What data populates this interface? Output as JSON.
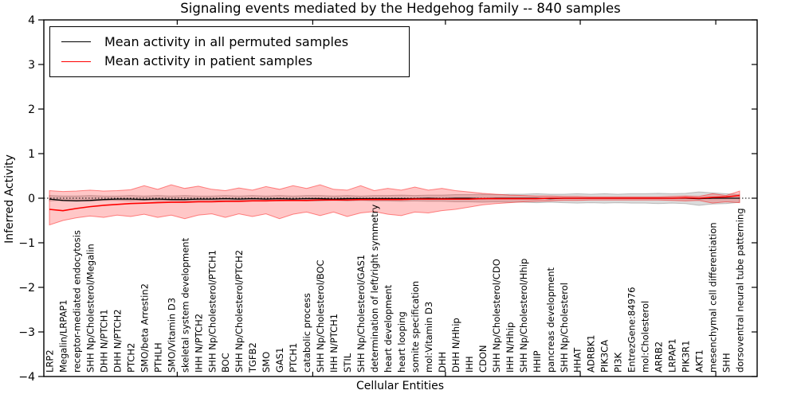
{
  "chart_data": {
    "type": "line",
    "title": "Signaling events mediated by the Hedgehog family -- 840 samples",
    "xlabel": "Cellular Entities",
    "ylabel": "Inferred Activity",
    "ylim": [
      -4,
      4
    ],
    "yticks": [
      4,
      3,
      2,
      1,
      0,
      -1,
      -2,
      -3,
      -4
    ],
    "ytick_labels": [
      "4",
      "3",
      "2",
      "1",
      "0",
      "−1",
      "−2",
      "−3",
      "−4"
    ],
    "grid": false,
    "legend_position": "upper left",
    "zero_reference_line": 0,
    "categories": [
      "LRP2",
      "Megalin/LRPAP1",
      "receptor-mediated endocytosis",
      "SHH Np/Cholesterol/Megalin",
      "DHH N/PTCH1",
      "DHH N/PTCH2",
      "PTCH2",
      "SMO/beta Arrestin2",
      "PTHLH",
      "SMO/Vitamin D3",
      "skeletal system development",
      "IHH N/PTCH2",
      "SHH Np/Cholesterol/PTCH1",
      "BOC",
      "SHH Np/Cholesterol/PTCH2",
      "TGFB2",
      "SMO",
      "GAS1",
      "PTCH1",
      "catabolic process",
      "SHH Np/Cholesterol/BOC",
      "IHH N/PTCH1",
      "STIL",
      "SHH Np/Cholesterol/GAS1",
      "determination of left/right symmetry",
      "heart development",
      "heart looping",
      "somite specification",
      "mol:Vitamin D3",
      "DHH",
      "DHH N/Hhip",
      "IHH",
      "CDON",
      "SHH Np/Cholesterol/CDO",
      "IHH N/Hhip",
      "SHH Np/Cholesterol/Hhip",
      "HHIP",
      "pancreas development",
      "SHH Np/Cholesterol",
      "HHAT",
      "ADRBK1",
      "PIK3CA",
      "PI3K",
      "EntrezGene:84976",
      "mol:Cholesterol",
      "ARRB2",
      "LRPAP1",
      "PIK3R1",
      "AKT1",
      "mesenchymal cell differentiation",
      "SHH",
      "dorsoventral neural tube patterning"
    ],
    "series": [
      {
        "name": "Mean activity in all permuted samples",
        "color": "#000000",
        "style": "solid",
        "values": [
          -0.02,
          -0.05,
          -0.06,
          -0.05,
          -0.03,
          -0.02,
          -0.02,
          -0.03,
          -0.02,
          -0.03,
          -0.03,
          -0.02,
          -0.02,
          -0.01,
          -0.02,
          -0.01,
          -0.02,
          -0.01,
          -0.02,
          -0.01,
          -0.01,
          -0.02,
          -0.01,
          -0.01,
          -0.01,
          -0.01,
          -0.01,
          -0.01,
          0.0,
          -0.01,
          0.0,
          0.0,
          -0.01,
          0.0,
          0.0,
          0.0,
          0.0,
          -0.01,
          0.0,
          0.0,
          0.0,
          0.0,
          0.0,
          0.0,
          0.0,
          0.0,
          0.0,
          0.0,
          -0.01,
          0.0,
          0.0,
          0.0
        ]
      },
      {
        "name": "Mean activity in patient samples",
        "color": "#ff0000",
        "style": "solid",
        "values": [
          -0.25,
          -0.28,
          -0.23,
          -0.19,
          -0.16,
          -0.14,
          -0.12,
          -0.11,
          -0.1,
          -0.09,
          -0.09,
          -0.08,
          -0.08,
          -0.07,
          -0.07,
          -0.06,
          -0.06,
          -0.05,
          -0.05,
          -0.05,
          -0.04,
          -0.04,
          -0.04,
          -0.03,
          -0.03,
          -0.03,
          -0.03,
          -0.02,
          -0.02,
          -0.02,
          -0.02,
          -0.02,
          -0.01,
          -0.01,
          -0.01,
          -0.01,
          -0.01,
          0.0,
          0.0,
          0.0,
          0.0,
          0.0,
          0.0,
          0.0,
          0.0,
          0.0,
          0.0,
          0.01,
          0.0,
          0.02,
          0.03,
          0.06
        ]
      }
    ],
    "bands": [
      {
        "name": "permuted samples activity range",
        "color": "#7f7f7f",
        "upper": [
          0.06,
          0.05,
          0.05,
          0.06,
          0.05,
          0.05,
          0.06,
          0.05,
          0.06,
          0.05,
          0.06,
          0.05,
          0.05,
          0.06,
          0.05,
          0.06,
          0.05,
          0.06,
          0.05,
          0.06,
          0.06,
          0.05,
          0.06,
          0.05,
          0.06,
          0.06,
          0.07,
          0.06,
          0.07,
          0.07,
          0.08,
          0.08,
          0.09,
          0.08,
          0.09,
          0.09,
          0.1,
          0.09,
          0.09,
          0.1,
          0.09,
          0.1,
          0.09,
          0.1,
          0.1,
          0.11,
          0.1,
          0.11,
          0.14,
          0.12,
          0.1,
          0.08
        ],
        "lower": [
          -0.06,
          -0.05,
          -0.05,
          -0.06,
          -0.05,
          -0.05,
          -0.06,
          -0.05,
          -0.06,
          -0.05,
          -0.06,
          -0.05,
          -0.05,
          -0.06,
          -0.05,
          -0.06,
          -0.05,
          -0.06,
          -0.05,
          -0.06,
          -0.06,
          -0.05,
          -0.06,
          -0.05,
          -0.06,
          -0.06,
          -0.07,
          -0.06,
          -0.07,
          -0.07,
          -0.08,
          -0.08,
          -0.09,
          -0.08,
          -0.09,
          -0.09,
          -0.1,
          -0.09,
          -0.1,
          -0.11,
          -0.1,
          -0.11,
          -0.1,
          -0.11,
          -0.11,
          -0.12,
          -0.11,
          -0.12,
          -0.16,
          -0.13,
          -0.12,
          -0.09
        ]
      },
      {
        "name": "patient samples activity range",
        "color": "#ff0000",
        "upper": [
          0.17,
          0.15,
          0.16,
          0.18,
          0.16,
          0.17,
          0.19,
          0.28,
          0.2,
          0.3,
          0.22,
          0.27,
          0.2,
          0.17,
          0.23,
          0.18,
          0.26,
          0.2,
          0.28,
          0.22,
          0.3,
          0.2,
          0.18,
          0.28,
          0.17,
          0.22,
          0.18,
          0.25,
          0.18,
          0.22,
          0.17,
          0.14,
          0.11,
          0.09,
          0.07,
          0.06,
          0.05,
          0.05,
          0.04,
          0.04,
          0.03,
          0.03,
          0.03,
          0.03,
          0.03,
          0.03,
          0.04,
          0.05,
          0.04,
          0.1,
          0.06,
          0.16
        ],
        "lower": [
          -0.6,
          -0.5,
          -0.44,
          -0.4,
          -0.43,
          -0.38,
          -0.41,
          -0.36,
          -0.43,
          -0.38,
          -0.46,
          -0.38,
          -0.35,
          -0.43,
          -0.35,
          -0.41,
          -0.35,
          -0.46,
          -0.36,
          -0.31,
          -0.39,
          -0.31,
          -0.41,
          -0.33,
          -0.3,
          -0.36,
          -0.39,
          -0.31,
          -0.33,
          -0.28,
          -0.25,
          -0.2,
          -0.15,
          -0.12,
          -0.1,
          -0.08,
          -0.07,
          -0.06,
          -0.05,
          -0.05,
          -0.04,
          -0.04,
          -0.04,
          -0.04,
          -0.04,
          -0.04,
          -0.05,
          -0.06,
          -0.05,
          -0.11,
          -0.08,
          -0.1
        ]
      }
    ]
  }
}
